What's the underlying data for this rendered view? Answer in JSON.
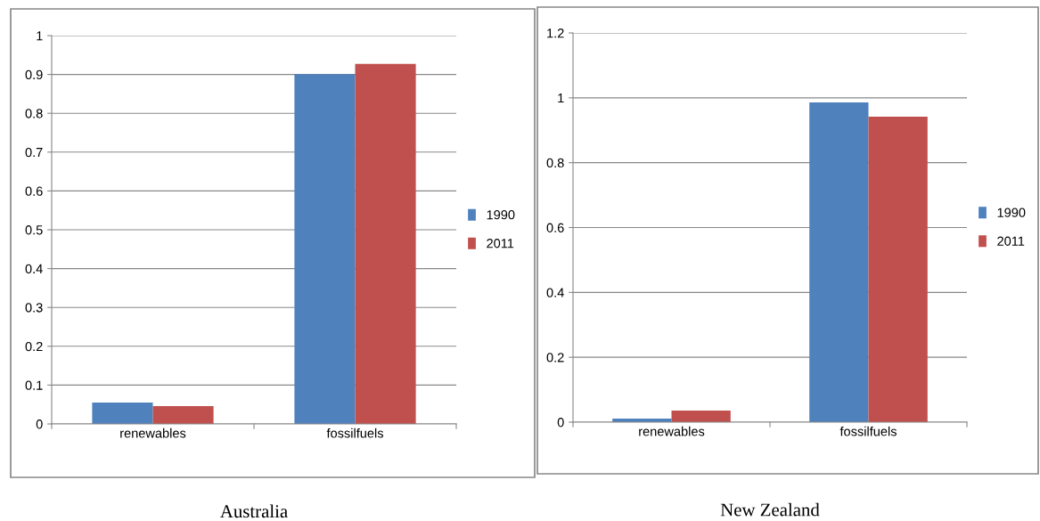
{
  "chart_data": [
    {
      "type": "bar",
      "title": "Australia",
      "categories": [
        "renewables",
        "fossilfuels"
      ],
      "series": [
        {
          "name": "1990",
          "color": "#4f81bd",
          "values": [
            0.055,
            0.901
          ]
        },
        {
          "name": "2011",
          "color": "#c0504d",
          "values": [
            0.046,
            0.927
          ]
        }
      ],
      "ylim": [
        0,
        1
      ],
      "yticks": [
        0,
        0.1,
        0.2,
        0.3,
        0.4,
        0.5,
        0.6,
        0.7,
        0.8,
        0.9,
        1
      ],
      "grid": "y",
      "legend": "right"
    },
    {
      "type": "bar",
      "title": "New Zealand",
      "categories": [
        "renewables",
        "fossilfuels"
      ],
      "series": [
        {
          "name": "1990",
          "color": "#4f81bd",
          "values": [
            0.011,
            0.986
          ]
        },
        {
          "name": "2011",
          "color": "#c0504d",
          "values": [
            0.036,
            0.942
          ]
        }
      ],
      "ylim": [
        0,
        1.2
      ],
      "yticks": [
        0,
        0.2,
        0.4,
        0.6,
        0.8,
        1,
        1.2
      ],
      "grid": "y",
      "legend": "right"
    }
  ]
}
